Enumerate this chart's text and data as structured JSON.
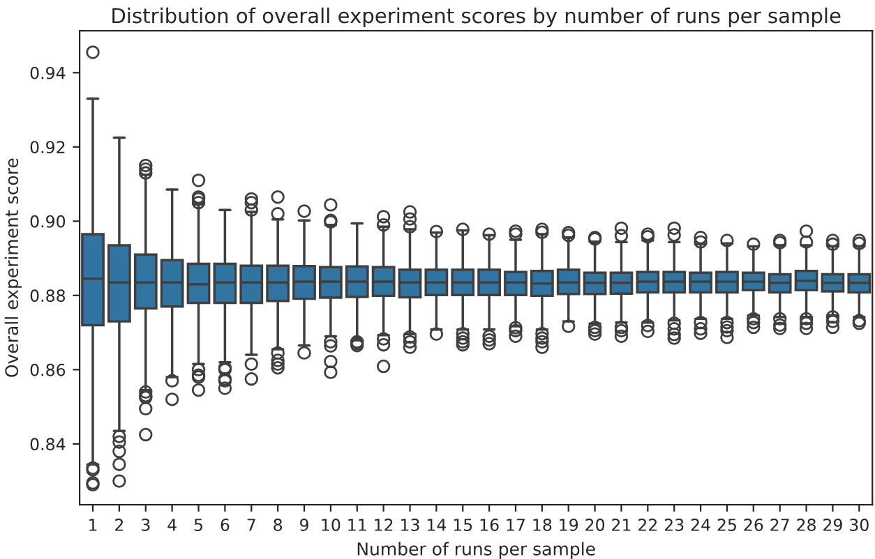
{
  "chart_data": {
    "type": "box",
    "title": "Distribution of overall experiment scores by number of runs per sample",
    "xlabel": "Number of runs per sample",
    "ylabel": "Overall experiment score",
    "categories": [
      "1",
      "2",
      "3",
      "4",
      "5",
      "6",
      "7",
      "8",
      "9",
      "10",
      "11",
      "12",
      "13",
      "14",
      "15",
      "16",
      "17",
      "18",
      "19",
      "20",
      "21",
      "22",
      "23",
      "24",
      "25",
      "26",
      "27",
      "28",
      "29",
      "30"
    ],
    "color": "#3274a1",
    "ylim": [
      0.8236,
      0.9513
    ],
    "yticks": [
      {
        "value": 0.84,
        "label": "0.84"
      },
      {
        "value": 0.86,
        "label": "0.86"
      },
      {
        "value": 0.88,
        "label": "0.88"
      },
      {
        "value": 0.9,
        "label": "0.90"
      },
      {
        "value": 0.92,
        "label": "0.92"
      },
      {
        "value": 0.94,
        "label": "0.94"
      }
    ],
    "grid": false,
    "boxes": [
      {
        "low": 0.8345,
        "q1": 0.872,
        "median": 0.8845,
        "q3": 0.8965,
        "high": 0.933,
        "outliers": [
          0.9455,
          0.8335,
          0.833,
          0.8295,
          0.829
        ]
      },
      {
        "low": 0.8435,
        "q1": 0.873,
        "median": 0.8835,
        "q3": 0.8935,
        "high": 0.9225,
        "outliers": [
          0.842,
          0.8405,
          0.838,
          0.8345,
          0.83
        ]
      },
      {
        "low": 0.8545,
        "q1": 0.8765,
        "median": 0.8835,
        "q3": 0.891,
        "high": 0.9125,
        "outliers": [
          0.915,
          0.914,
          0.913,
          0.854,
          0.853,
          0.8525,
          0.8495,
          0.8425
        ]
      },
      {
        "low": 0.858,
        "q1": 0.877,
        "median": 0.8835,
        "q3": 0.8895,
        "high": 0.9085,
        "outliers": [
          0.857,
          0.852
        ]
      },
      {
        "low": 0.8615,
        "q1": 0.878,
        "median": 0.883,
        "q3": 0.8885,
        "high": 0.9045,
        "outliers": [
          0.911,
          0.9065,
          0.906,
          0.905,
          0.86,
          0.8585,
          0.858,
          0.8545
        ]
      },
      {
        "low": 0.862,
        "q1": 0.878,
        "median": 0.8835,
        "q3": 0.8885,
        "high": 0.903,
        "outliers": [
          0.8605,
          0.86,
          0.8575,
          0.857,
          0.855
        ]
      },
      {
        "low": 0.864,
        "q1": 0.878,
        "median": 0.8835,
        "q3": 0.888,
        "high": 0.9025,
        "outliers": [
          0.906,
          0.905,
          0.903,
          0.8615,
          0.8575
        ]
      },
      {
        "low": 0.8655,
        "q1": 0.8785,
        "median": 0.8835,
        "q3": 0.888,
        "high": 0.9005,
        "outliers": [
          0.9065,
          0.902,
          0.8645,
          0.8625,
          0.8615,
          0.8605
        ]
      },
      {
        "low": 0.8665,
        "q1": 0.8791,
        "median": 0.8837,
        "q3": 0.8879,
        "high": 0.9002,
        "outliers": [
          0.9027,
          0.8645
        ]
      },
      {
        "low": 0.869,
        "q1": 0.8794,
        "median": 0.8837,
        "q3": 0.8876,
        "high": 0.899,
        "outliers": [
          0.9044,
          0.9002,
          0.8998,
          0.8675,
          0.8664,
          0.8622,
          0.8593
        ]
      },
      {
        "low": 0.8679,
        "q1": 0.8796,
        "median": 0.8837,
        "q3": 0.8878,
        "high": 0.8994,
        "outliers": [
          0.8675,
          0.867,
          0.8665
        ]
      },
      {
        "low": 0.8693,
        "q1": 0.8799,
        "median": 0.8837,
        "q3": 0.8876,
        "high": 0.8985,
        "outliers": [
          0.9012,
          0.899,
          0.8683,
          0.8667,
          0.8609
        ]
      },
      {
        "low": 0.8696,
        "q1": 0.8795,
        "median": 0.8835,
        "q3": 0.8869,
        "high": 0.8978,
        "outliers": [
          0.9025,
          0.9006,
          0.8985,
          0.8688,
          0.8675,
          0.866
        ]
      },
      {
        "low": 0.8708,
        "q1": 0.8801,
        "median": 0.8835,
        "q3": 0.8869,
        "high": 0.8969,
        "outliers": [
          0.8972,
          0.8696
        ]
      },
      {
        "low": 0.8708,
        "q1": 0.8801,
        "median": 0.8835,
        "q3": 0.8869,
        "high": 0.8975,
        "outliers": [
          0.8978,
          0.8697,
          0.8685,
          0.8675,
          0.8667
        ]
      },
      {
        "low": 0.8708,
        "q1": 0.8801,
        "median": 0.8835,
        "q3": 0.8869,
        "high": 0.8962,
        "outliers": [
          0.8965,
          0.869,
          0.868,
          0.867
        ]
      },
      {
        "low": 0.8717,
        "q1": 0.8801,
        "median": 0.8835,
        "q3": 0.8863,
        "high": 0.895,
        "outliers": [
          0.8973,
          0.8965,
          0.8713,
          0.8705,
          0.869
        ]
      },
      {
        "low": 0.8708,
        "q1": 0.8799,
        "median": 0.8832,
        "q3": 0.8866,
        "high": 0.8965,
        "outliers": [
          0.8978,
          0.897,
          0.8697,
          0.8685,
          0.8675,
          0.866
        ]
      },
      {
        "low": 0.873,
        "q1": 0.8804,
        "median": 0.8835,
        "q3": 0.8869,
        "high": 0.8956,
        "outliers": [
          0.8969,
          0.8962,
          0.8717
        ]
      },
      {
        "low": 0.8724,
        "q1": 0.8804,
        "median": 0.8834,
        "q3": 0.8861,
        "high": 0.8945,
        "outliers": [
          0.8956,
          0.8952,
          0.8714,
          0.8705,
          0.8696
        ]
      },
      {
        "low": 0.8727,
        "q1": 0.8805,
        "median": 0.8834,
        "q3": 0.8861,
        "high": 0.8944,
        "outliers": [
          0.8981,
          0.8961,
          0.8714,
          0.8705,
          0.869
        ]
      },
      {
        "low": 0.8727,
        "q1": 0.8808,
        "median": 0.8837,
        "q3": 0.8863,
        "high": 0.8948,
        "outliers": [
          0.8965,
          0.8958,
          0.8719,
          0.8703
        ]
      },
      {
        "low": 0.8733,
        "q1": 0.8808,
        "median": 0.8837,
        "q3": 0.8863,
        "high": 0.8944,
        "outliers": [
          0.8981,
          0.8963,
          0.8725,
          0.871,
          0.8695,
          0.8685
        ]
      },
      {
        "low": 0.8737,
        "q1": 0.8808,
        "median": 0.8837,
        "q3": 0.8861,
        "high": 0.8938,
        "outliers": [
          0.8956,
          0.8944,
          0.8727,
          0.871,
          0.8698
        ]
      },
      {
        "low": 0.8737,
        "q1": 0.8808,
        "median": 0.8837,
        "q3": 0.8863,
        "high": 0.894,
        "outliers": [
          0.8948,
          0.8727,
          0.8715,
          0.8705,
          0.8687
        ]
      },
      {
        "low": 0.8746,
        "q1": 0.8814,
        "median": 0.8837,
        "q3": 0.8861,
        "high": 0.8932,
        "outliers": [
          0.8938,
          0.8737,
          0.8727,
          0.8714
        ]
      },
      {
        "low": 0.8742,
        "q1": 0.8808,
        "median": 0.8834,
        "q3": 0.8857,
        "high": 0.8935,
        "outliers": [
          0.8948,
          0.8942,
          0.8737,
          0.872,
          0.8711
        ]
      },
      {
        "low": 0.8742,
        "q1": 0.8814,
        "median": 0.8839,
        "q3": 0.8866,
        "high": 0.8935,
        "outliers": [
          0.8973,
          0.8944,
          0.8737,
          0.8725,
          0.8711
        ]
      },
      {
        "low": 0.8746,
        "q1": 0.8811,
        "median": 0.8834,
        "q3": 0.8857,
        "high": 0.8932,
        "outliers": [
          0.8948,
          0.8938,
          0.8742,
          0.873,
          0.8714
        ]
      },
      {
        "low": 0.8742,
        "q1": 0.8808,
        "median": 0.8834,
        "q3": 0.8857,
        "high": 0.8932,
        "outliers": [
          0.8948,
          0.894,
          0.8732,
          0.8725
        ]
      }
    ]
  }
}
